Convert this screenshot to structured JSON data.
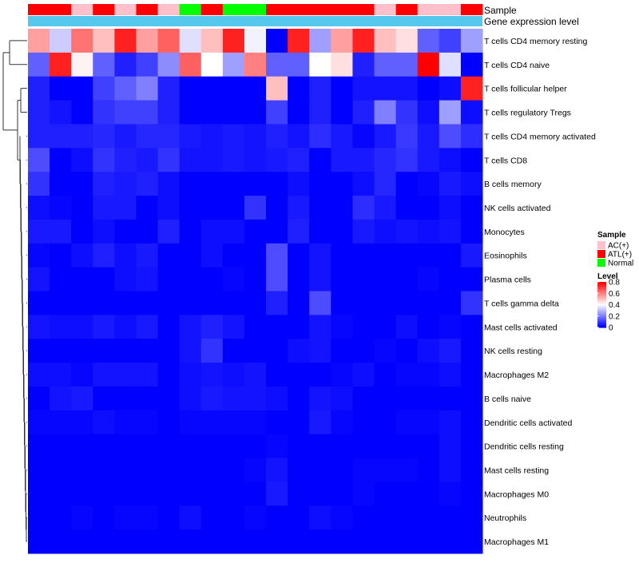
{
  "chart_data": {
    "type": "heatmap",
    "title": "",
    "annotation_labels": {
      "sample": "Sample",
      "expression": "Gene expression level"
    },
    "sample_groups": [
      "ATL(+)",
      "ATL(+)",
      "AC(+)",
      "ATL(+)",
      "AC(+)",
      "ATL(+)",
      "AC(+)",
      "Normal",
      "ATL(+)",
      "Normal",
      "Normal",
      "ATL(+)",
      "ATL(+)",
      "ATL(+)",
      "ATL(+)",
      "ATL(+)",
      "AC(+)",
      "ATL(+)",
      "AC(+)",
      "AC(+)",
      "ATL(+)"
    ],
    "rows": [
      "T cells CD4 memory resting",
      "T cells CD4 naive",
      "T cells follicular helper",
      "T cells regulatory  Tregs",
      "T cells CD4 memory activated",
      "T cells CD8",
      "B cells memory",
      "NK cells activated",
      "Monocytes",
      "Eosinophils",
      "Plasma cells",
      "T cells gamma delta",
      "Mast cells activated",
      "NK cells resting",
      "Macrophages M2",
      "B cells naive",
      "Dendritic cells activated",
      "Dendritic cells resting",
      "Mast cells resting",
      "Macrophages M0",
      "Neutrophils",
      "Macrophages M1"
    ],
    "values": [
      [
        0.55,
        0.32,
        0.62,
        0.5,
        0.75,
        0.55,
        0.65,
        0.35,
        0.5,
        0.75,
        0.38,
        0.0,
        0.75,
        0.25,
        0.55,
        0.75,
        0.5,
        0.45,
        0.15,
        0.1,
        0.25
      ],
      [
        0.15,
        0.75,
        0.42,
        0.15,
        0.05,
        0.1,
        0.22,
        0.65,
        0.4,
        0.25,
        0.6,
        0.15,
        0.15,
        0.4,
        0.45,
        0.05,
        0.15,
        0.15,
        0.8,
        0.35,
        0.0
      ],
      [
        0.05,
        0.0,
        0.0,
        0.1,
        0.15,
        0.2,
        0.05,
        0.0,
        0.0,
        0.0,
        0.0,
        0.5,
        0.0,
        0.05,
        0.0,
        0.03,
        0.03,
        0.03,
        0.0,
        0.02,
        0.75
      ],
      [
        0.05,
        0.03,
        0.0,
        0.08,
        0.1,
        0.1,
        0.05,
        0.0,
        0.0,
        0.0,
        0.0,
        0.1,
        0.0,
        0.05,
        0.0,
        0.05,
        0.2,
        0.08,
        0.02,
        0.25,
        0.02
      ],
      [
        0.05,
        0.05,
        0.05,
        0.06,
        0.04,
        0.06,
        0.06,
        0.04,
        0.03,
        0.04,
        0.03,
        0.05,
        0.03,
        0.07,
        0.04,
        0.01,
        0.04,
        0.09,
        0.04,
        0.12,
        0.07
      ],
      [
        0.12,
        0.0,
        0.02,
        0.08,
        0.05,
        0.04,
        0.08,
        0.03,
        0.03,
        0.04,
        0.03,
        0.04,
        0.05,
        0.0,
        0.04,
        0.04,
        0.06,
        0.08,
        0.04,
        0.02,
        0.0
      ],
      [
        0.08,
        0.0,
        0.0,
        0.05,
        0.04,
        0.05,
        0.02,
        0.0,
        0.0,
        0.0,
        0.0,
        0.0,
        0.02,
        0.0,
        0.0,
        0.02,
        0.06,
        0.0,
        0.01,
        0.04,
        0.02
      ],
      [
        0.02,
        0.01,
        0.0,
        0.04,
        0.04,
        0.0,
        0.02,
        0.0,
        0.0,
        0.0,
        0.08,
        0.0,
        0.04,
        0.0,
        0.0,
        0.07,
        0.04,
        0.0,
        0.0,
        0.02,
        0.0
      ],
      [
        0.04,
        0.04,
        0.0,
        0.02,
        0.0,
        0.0,
        0.05,
        0.0,
        0.02,
        0.02,
        0.0,
        0.0,
        0.05,
        0.0,
        0.0,
        0.04,
        0.02,
        0.03,
        0.02,
        0.03,
        0.0
      ],
      [
        0.01,
        0.0,
        0.02,
        0.05,
        0.02,
        0.04,
        0.0,
        0.0,
        0.02,
        0.0,
        0.0,
        0.12,
        0.0,
        0.03,
        0.0,
        0.0,
        0.0,
        0.0,
        0.0,
        0.0,
        0.04
      ],
      [
        0.03,
        0.0,
        0.0,
        0.0,
        0.02,
        0.03,
        0.0,
        0.0,
        0.0,
        0.01,
        0.0,
        0.12,
        0.0,
        0.03,
        0.0,
        0.0,
        0.0,
        0.0,
        0.01,
        0.0,
        0.0
      ],
      [
        0.0,
        0.0,
        0.0,
        0.0,
        0.0,
        0.0,
        0.0,
        0.0,
        0.0,
        0.0,
        0.0,
        0.05,
        0.0,
        0.12,
        0.0,
        0.0,
        0.0,
        0.0,
        0.0,
        0.0,
        0.08
      ],
      [
        0.03,
        0.02,
        0.02,
        0.04,
        0.02,
        0.04,
        0.0,
        0.03,
        0.05,
        0.03,
        0.0,
        0.0,
        0.0,
        0.03,
        0.01,
        0.0,
        0.0,
        0.02,
        0.0,
        0.01,
        0.0
      ],
      [
        0.0,
        0.0,
        0.0,
        0.0,
        0.0,
        0.0,
        0.0,
        0.03,
        0.08,
        0.0,
        0.0,
        0.0,
        0.02,
        0.03,
        0.0,
        0.0,
        0.01,
        0.0,
        0.02,
        0.04,
        0.0
      ],
      [
        0.02,
        0.02,
        0.01,
        0.03,
        0.03,
        0.03,
        0.0,
        0.02,
        0.03,
        0.02,
        0.03,
        0.0,
        0.0,
        0.0,
        0.01,
        0.02,
        0.0,
        0.01,
        0.01,
        0.02,
        0.0
      ],
      [
        0.0,
        0.03,
        0.04,
        0.0,
        0.0,
        0.0,
        0.0,
        0.02,
        0.04,
        0.03,
        0.03,
        0.02,
        0.0,
        0.03,
        0.02,
        0.0,
        0.0,
        0.0,
        0.0,
        0.0,
        0.0
      ],
      [
        0.01,
        0.01,
        0.01,
        0.02,
        0.01,
        0.01,
        0.0,
        0.01,
        0.01,
        0.01,
        0.01,
        0.0,
        0.0,
        0.04,
        0.01,
        0.0,
        0.0,
        0.01,
        0.01,
        0.02,
        0.0
      ],
      [
        0.0,
        0.0,
        0.0,
        0.0,
        0.0,
        0.0,
        0.0,
        0.0,
        0.0,
        0.0,
        0.0,
        0.01,
        0.0,
        0.0,
        0.0,
        0.0,
        0.0,
        0.0,
        0.0,
        0.02,
        0.0
      ],
      [
        0.0,
        0.0,
        0.0,
        0.0,
        0.0,
        0.0,
        0.0,
        0.0,
        0.0,
        0.0,
        0.01,
        0.03,
        0.0,
        0.0,
        0.0,
        0.01,
        0.01,
        0.01,
        0.0,
        0.02,
        0.0
      ],
      [
        0.0,
        0.0,
        0.0,
        0.0,
        0.0,
        0.0,
        0.0,
        0.0,
        0.0,
        0.0,
        0.0,
        0.04,
        0.0,
        0.0,
        0.0,
        0.01,
        0.0,
        0.0,
        0.0,
        0.01,
        0.0
      ],
      [
        0.0,
        0.0,
        0.01,
        0.0,
        0.01,
        0.01,
        0.0,
        0.02,
        0.0,
        0.0,
        0.01,
        0.0,
        0.0,
        0.02,
        0.01,
        0.0,
        0.0,
        0.0,
        0.0,
        0.0,
        0.0
      ],
      [
        0.0,
        0.0,
        0.0,
        0.0,
        0.0,
        0.0,
        0.0,
        0.0,
        0.0,
        0.0,
        0.0,
        0.0,
        0.0,
        0.0,
        0.0,
        0.0,
        0.0,
        0.0,
        0.0,
        0.0,
        0.0
      ]
    ],
    "expression_annotation_color": "#56c8ee",
    "group_colors": {
      "AC(+)": "#ffc0cb",
      "ATL(+)": "#ff0000",
      "Normal": "#00ff00"
    },
    "legend": {
      "sample_title": "Sample",
      "sample_items": [
        "AC(+)",
        "ATL(+)",
        "Normal"
      ],
      "level_title": "Level",
      "level_ticks": [
        "0.8",
        "0.6",
        "0.4",
        "0.2",
        "0"
      ],
      "level_tick_values": [
        0.8,
        0.6,
        0.4,
        0.2,
        0.0
      ]
    },
    "color_scale": {
      "min": 0,
      "mid": 0.4,
      "max": 0.8,
      "low": "#0000ff",
      "midColor": "#ffffff",
      "high": "#ff0000"
    },
    "row_dendrogram": "shown (left)"
  }
}
